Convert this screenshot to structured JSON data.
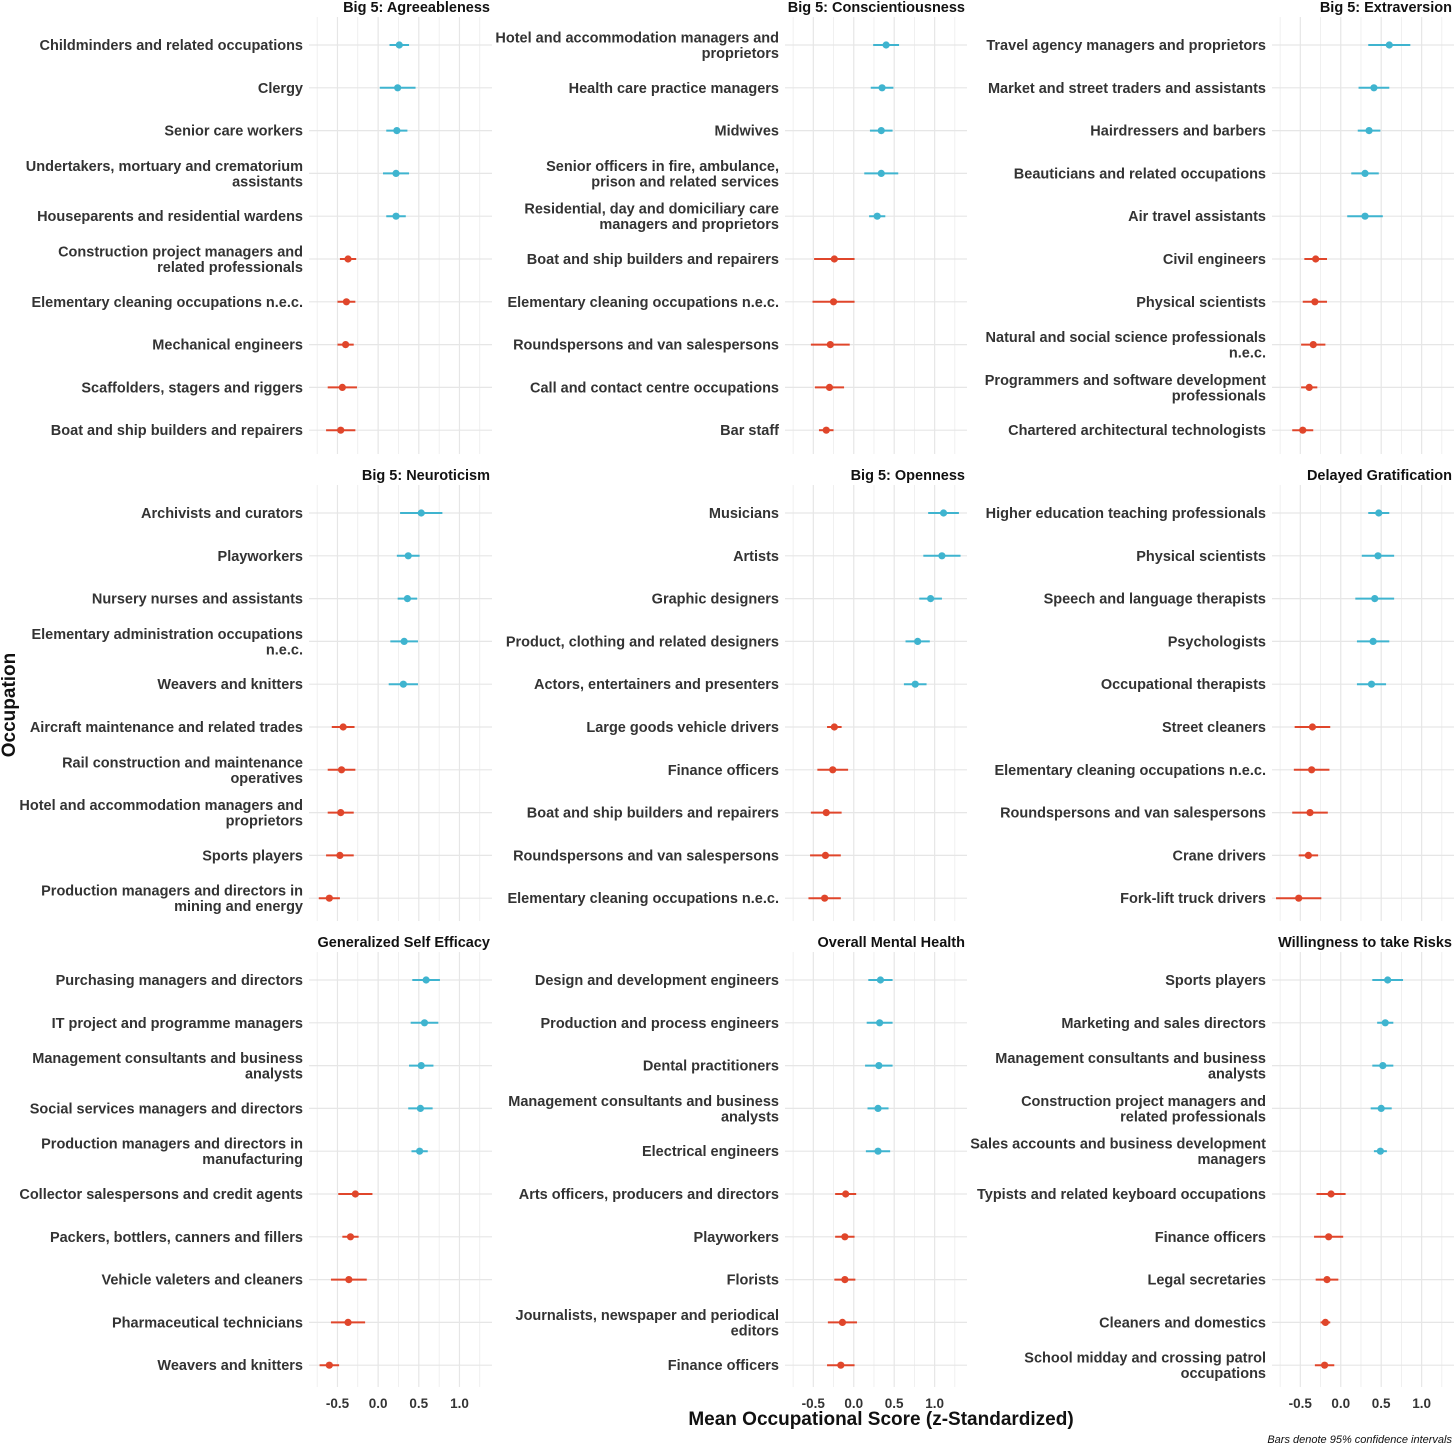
{
  "x_axis_title": "Mean Occupational Score (z-Standardized)",
  "y_axis_title": "Occupation",
  "caption": "Bars denote 95% confidence intervals",
  "colors": {
    "high": "#3fb4cf",
    "low": "#e0462b",
    "grid": "#e6e6e6"
  },
  "chart_data": [
    {
      "type": "scatter",
      "title": "Big 5: Agreeableness",
      "xlim": [
        -0.85,
        1.4
      ],
      "xticks": [
        -0.5,
        0,
        0.5,
        1
      ],
      "xtick_labels": [
        "-0.5",
        "0.0",
        "0.5",
        "1.0"
      ],
      "categories": [
        "Childminders and related occupations",
        "Clergy",
        "Senior care workers",
        "Undertakers, mortuary and crematorium assistants",
        "Houseparents and residential wardens",
        "Construction project managers and related professionals",
        "Elementary cleaning occupations n.e.c.",
        "Mechanical engineers",
        "Scaffolders, stagers and riggers",
        "Boat and ship builders and repairers"
      ],
      "labels": [
        [
          "Childminders and related occupations"
        ],
        [
          "Clergy"
        ],
        [
          "Senior care workers"
        ],
        [
          "Undertakers, mortuary and crematorium",
          "assistants"
        ],
        [
          "Houseparents and residential wardens"
        ],
        [
          "Construction project managers and",
          "related professionals"
        ],
        [
          "Elementary cleaning occupations n.e.c."
        ],
        [
          "Mechanical engineers"
        ],
        [
          "Scaffolders, stagers and riggers"
        ],
        [
          "Boat and ship builders and repairers"
        ]
      ],
      "values": [
        0.26,
        0.24,
        0.23,
        0.22,
        0.22,
        -0.37,
        -0.39,
        -0.4,
        -0.44,
        -0.46
      ],
      "ci_low": [
        0.14,
        0.02,
        0.1,
        0.06,
        0.1,
        -0.47,
        -0.5,
        -0.5,
        -0.62,
        -0.64
      ],
      "ci_high": [
        0.38,
        0.46,
        0.36,
        0.38,
        0.34,
        -0.27,
        -0.28,
        -0.3,
        -0.26,
        -0.28
      ],
      "group": [
        "high",
        "high",
        "high",
        "high",
        "high",
        "low",
        "low",
        "low",
        "low",
        "low"
      ]
    },
    {
      "type": "scatter",
      "title": "Big 5: Conscientiousness",
      "xlim": [
        -0.85,
        1.4
      ],
      "xticks": [
        -0.5,
        0,
        0.5,
        1
      ],
      "xtick_labels": [
        "-0.5",
        "0.0",
        "0.5",
        "1.0"
      ],
      "categories": [
        "Hotel and accommodation managers and proprietors",
        "Health care practice managers",
        "Midwives",
        "Senior officers in fire, ambulance, prison and related services",
        "Residential, day and domiciliary care managers and proprietors",
        "Boat and ship builders and repairers",
        "Elementary cleaning occupations n.e.c.",
        "Roundspersons and van salespersons",
        "Call and contact centre occupations",
        "Bar staff"
      ],
      "labels": [
        [
          "Hotel and accommodation managers and",
          "proprietors"
        ],
        [
          "Health care practice managers"
        ],
        [
          "Midwives"
        ],
        [
          "Senior officers in fire, ambulance,",
          "prison and related services"
        ],
        [
          "Residential, day and domiciliary care",
          "managers and proprietors"
        ],
        [
          "Boat and ship builders and repairers"
        ],
        [
          "Elementary cleaning occupations n.e.c."
        ],
        [
          "Roundspersons and van salespersons"
        ],
        [
          "Call and contact centre occupations"
        ],
        [
          "Bar staff"
        ]
      ],
      "values": [
        0.4,
        0.35,
        0.34,
        0.34,
        0.29,
        -0.24,
        -0.25,
        -0.29,
        -0.3,
        -0.34
      ],
      "ci_low": [
        0.24,
        0.21,
        0.2,
        0.13,
        0.19,
        -0.49,
        -0.51,
        -0.53,
        -0.48,
        -0.43
      ],
      "ci_high": [
        0.56,
        0.49,
        0.48,
        0.55,
        0.39,
        0.01,
        0.01,
        -0.05,
        -0.12,
        -0.25
      ],
      "group": [
        "high",
        "high",
        "high",
        "high",
        "high",
        "low",
        "low",
        "low",
        "low",
        "low"
      ]
    },
    {
      "type": "scatter",
      "title": "Big 5: Extraversion",
      "xlim": [
        -0.85,
        1.4
      ],
      "xticks": [
        -0.5,
        0,
        0.5,
        1
      ],
      "xtick_labels": [
        "-0.5",
        "0.0",
        "0.5",
        "1.0"
      ],
      "categories": [
        "Travel agency managers and proprietors",
        "Market and street traders and assistants",
        "Hairdressers and barbers",
        "Beauticians and related occupations",
        "Air travel assistants",
        "Civil engineers",
        "Physical scientists",
        "Natural and social science professionals n.e.c.",
        "Programmers and software development professionals",
        "Chartered architectural technologists"
      ],
      "labels": [
        [
          "Travel agency managers and proprietors"
        ],
        [
          "Market and street traders and assistants"
        ],
        [
          "Hairdressers and barbers"
        ],
        [
          "Beauticians and related occupations"
        ],
        [
          "Air travel assistants"
        ],
        [
          "Civil engineers"
        ],
        [
          "Physical scientists"
        ],
        [
          "Natural and social science professionals",
          "n.e.c."
        ],
        [
          "Programmers and software development",
          "professionals"
        ],
        [
          "Chartered architectural technologists"
        ]
      ],
      "values": [
        0.6,
        0.41,
        0.35,
        0.3,
        0.3,
        -0.31,
        -0.32,
        -0.34,
        -0.39,
        -0.47
      ],
      "ci_low": [
        0.34,
        0.22,
        0.21,
        0.13,
        0.08,
        -0.45,
        -0.47,
        -0.49,
        -0.49,
        -0.6
      ],
      "ci_high": [
        0.86,
        0.6,
        0.49,
        0.47,
        0.52,
        -0.17,
        -0.17,
        -0.19,
        -0.29,
        -0.34
      ],
      "group": [
        "high",
        "high",
        "high",
        "high",
        "high",
        "low",
        "low",
        "low",
        "low",
        "low"
      ]
    },
    {
      "type": "scatter",
      "title": "Big 5: Neuroticism",
      "xlim": [
        -0.85,
        1.4
      ],
      "xticks": [
        -0.5,
        0,
        0.5,
        1
      ],
      "xtick_labels": [
        "-0.5",
        "0.0",
        "0.5",
        "1.0"
      ],
      "categories": [
        "Archivists and curators",
        "Playworkers",
        "Nursery nurses and assistants",
        "Elementary administration occupations n.e.c.",
        "Weavers and knitters",
        "Aircraft maintenance and related trades",
        "Rail construction and maintenance operatives",
        "Hotel and accommodation managers and proprietors",
        "Sports players",
        "Production managers and directors in mining and energy"
      ],
      "labels": [
        [
          "Archivists and curators"
        ],
        [
          "Playworkers"
        ],
        [
          "Nursery nurses and assistants"
        ],
        [
          "Elementary administration occupations",
          "n.e.c."
        ],
        [
          "Weavers and knitters"
        ],
        [
          "Aircraft maintenance and related trades"
        ],
        [
          "Rail construction and maintenance",
          "operatives"
        ],
        [
          "Hotel and accommodation managers and",
          "proprietors"
        ],
        [
          "Sports players"
        ],
        [
          "Production managers and directors in",
          "mining and energy"
        ]
      ],
      "values": [
        0.53,
        0.37,
        0.36,
        0.32,
        0.31,
        -0.43,
        -0.45,
        -0.46,
        -0.47,
        -0.6
      ],
      "ci_low": [
        0.27,
        0.23,
        0.24,
        0.15,
        0.13,
        -0.57,
        -0.62,
        -0.62,
        -0.64,
        -0.73
      ],
      "ci_high": [
        0.79,
        0.51,
        0.48,
        0.49,
        0.49,
        -0.29,
        -0.28,
        -0.3,
        -0.3,
        -0.47
      ],
      "group": [
        "high",
        "high",
        "high",
        "high",
        "high",
        "low",
        "low",
        "low",
        "low",
        "low"
      ]
    },
    {
      "type": "scatter",
      "title": "Big 5: Openness",
      "xlim": [
        -0.85,
        1.4
      ],
      "xticks": [
        -0.5,
        0,
        0.5,
        1
      ],
      "xtick_labels": [
        "-0.5",
        "0.0",
        "0.5",
        "1.0"
      ],
      "categories": [
        "Musicians",
        "Artists",
        "Graphic designers",
        "Product, clothing and related designers",
        "Actors, entertainers and presenters",
        "Large goods vehicle drivers",
        "Finance officers",
        "Boat and ship builders and repairers",
        "Roundspersons and van salespersons",
        "Elementary cleaning occupations n.e.c."
      ],
      "labels": [
        [
          "Musicians"
        ],
        [
          "Artists"
        ],
        [
          "Graphic designers"
        ],
        [
          "Product, clothing and related designers"
        ],
        [
          "Actors, entertainers and presenters"
        ],
        [
          "Large goods vehicle drivers"
        ],
        [
          "Finance officers"
        ],
        [
          "Boat and ship builders and repairers"
        ],
        [
          "Roundspersons and van salespersons"
        ],
        [
          "Elementary cleaning occupations n.e.c."
        ]
      ],
      "values": [
        1.11,
        1.09,
        0.95,
        0.79,
        0.76,
        -0.24,
        -0.26,
        -0.34,
        -0.35,
        -0.36
      ],
      "ci_low": [
        0.92,
        0.86,
        0.81,
        0.64,
        0.62,
        -0.33,
        -0.45,
        -0.53,
        -0.54,
        -0.56
      ],
      "ci_high": [
        1.3,
        1.32,
        1.09,
        0.94,
        0.9,
        -0.15,
        -0.07,
        -0.15,
        -0.16,
        -0.16
      ],
      "group": [
        "high",
        "high",
        "high",
        "high",
        "high",
        "low",
        "low",
        "low",
        "low",
        "low"
      ]
    },
    {
      "type": "scatter",
      "title": "Delayed Gratification",
      "xlim": [
        -0.85,
        1.4
      ],
      "xticks": [
        -0.5,
        0,
        0.5,
        1
      ],
      "xtick_labels": [
        "-0.5",
        "0.0",
        "0.5",
        "1.0"
      ],
      "categories": [
        "Higher education teaching professionals",
        "Physical scientists",
        "Speech and language therapists",
        "Psychologists",
        "Occupational therapists",
        "Street cleaners",
        "Elementary cleaning occupations n.e.c.",
        "Roundspersons and van salespersons",
        "Crane drivers",
        "Fork-lift truck drivers"
      ],
      "labels": [
        [
          "Higher education teaching professionals"
        ],
        [
          "Physical scientists"
        ],
        [
          "Speech and language therapists"
        ],
        [
          "Psychologists"
        ],
        [
          "Occupational therapists"
        ],
        [
          "Street cleaners"
        ],
        [
          "Elementary cleaning occupations n.e.c."
        ],
        [
          "Roundspersons and van salespersons"
        ],
        [
          "Crane drivers"
        ],
        [
          "Fork-lift truck drivers"
        ]
      ],
      "values": [
        0.47,
        0.46,
        0.42,
        0.4,
        0.38,
        -0.35,
        -0.36,
        -0.38,
        -0.4,
        -0.52
      ],
      "ci_low": [
        0.34,
        0.26,
        0.18,
        0.2,
        0.2,
        -0.57,
        -0.58,
        -0.6,
        -0.52,
        -0.8
      ],
      "ci_high": [
        0.6,
        0.66,
        0.66,
        0.6,
        0.56,
        -0.13,
        -0.14,
        -0.16,
        -0.28,
        -0.24
      ],
      "group": [
        "high",
        "high",
        "high",
        "high",
        "high",
        "low",
        "low",
        "low",
        "low",
        "low"
      ]
    },
    {
      "type": "scatter",
      "title": "Generalized Self Efficacy",
      "xlim": [
        -0.85,
        1.4
      ],
      "xticks": [
        -0.5,
        0,
        0.5,
        1
      ],
      "xtick_labels": [
        "-0.5",
        "0.0",
        "0.5",
        "1.0"
      ],
      "categories": [
        "Purchasing managers and directors",
        "IT project and programme managers",
        "Management consultants and business analysts",
        "Social services managers and directors",
        "Production managers and directors in manufacturing",
        "Collector salespersons and credit agents",
        "Packers, bottlers, canners and fillers",
        "Vehicle valeters and cleaners",
        "Pharmaceutical technicians",
        "Weavers and knitters"
      ],
      "labels": [
        [
          "Purchasing managers and directors"
        ],
        [
          "IT project and programme managers"
        ],
        [
          "Management consultants and business",
          "analysts"
        ],
        [
          "Social services managers and directors"
        ],
        [
          "Production managers and directors in",
          "manufacturing"
        ],
        [
          "Collector salespersons and credit agents"
        ],
        [
          "Packers, bottlers, canners and fillers"
        ],
        [
          "Vehicle valeters and cleaners"
        ],
        [
          "Pharmaceutical technicians"
        ],
        [
          "Weavers and knitters"
        ]
      ],
      "values": [
        0.59,
        0.57,
        0.53,
        0.52,
        0.51,
        -0.28,
        -0.34,
        -0.36,
        -0.37,
        -0.6
      ],
      "ci_low": [
        0.42,
        0.4,
        0.38,
        0.37,
        0.41,
        -0.49,
        -0.44,
        -0.58,
        -0.58,
        -0.72
      ],
      "ci_high": [
        0.76,
        0.74,
        0.68,
        0.67,
        0.61,
        -0.07,
        -0.24,
        -0.14,
        -0.16,
        -0.48
      ],
      "group": [
        "high",
        "high",
        "high",
        "high",
        "high",
        "low",
        "low",
        "low",
        "low",
        "low"
      ]
    },
    {
      "type": "scatter",
      "title": "Overall Mental Health",
      "xlim": [
        -0.85,
        1.4
      ],
      "xticks": [
        -0.5,
        0,
        0.5,
        1
      ],
      "xtick_labels": [
        "-0.5",
        "0.0",
        "0.5",
        "1.0"
      ],
      "categories": [
        "Design and development engineers",
        "Production and process engineers",
        "Dental practitioners",
        "Management consultants and business analysts",
        "Electrical engineers",
        "Arts officers, producers and directors",
        "Playworkers",
        "Florists",
        "Journalists, newspaper and periodical editors",
        "Finance officers"
      ],
      "labels": [
        [
          "Design and development engineers"
        ],
        [
          "Production and process engineers"
        ],
        [
          "Dental practitioners"
        ],
        [
          "Management consultants and business",
          "analysts"
        ],
        [
          "Electrical engineers"
        ],
        [
          "Arts officers, producers and directors"
        ],
        [
          "Playworkers"
        ],
        [
          "Florists"
        ],
        [
          "Journalists, newspaper and periodical",
          "editors"
        ],
        [
          "Finance officers"
        ]
      ],
      "values": [
        0.33,
        0.32,
        0.31,
        0.3,
        0.3,
        -0.1,
        -0.11,
        -0.11,
        -0.14,
        -0.16
      ],
      "ci_low": [
        0.18,
        0.16,
        0.14,
        0.17,
        0.15,
        -0.23,
        -0.23,
        -0.24,
        -0.32,
        -0.33
      ],
      "ci_high": [
        0.48,
        0.48,
        0.48,
        0.43,
        0.45,
        0.03,
        0.01,
        0.02,
        0.04,
        0.01
      ],
      "group": [
        "high",
        "high",
        "high",
        "high",
        "high",
        "low",
        "low",
        "low",
        "low",
        "low"
      ]
    },
    {
      "type": "scatter",
      "title": "Willingness to take Risks",
      "xlim": [
        -0.85,
        1.4
      ],
      "xticks": [
        -0.5,
        0,
        0.5,
        1
      ],
      "xtick_labels": [
        "-0.5",
        "0.0",
        "0.5",
        "1.0"
      ],
      "categories": [
        "Sports players",
        "Marketing and sales directors",
        "Management consultants and business analysts",
        "Construction project managers and related professionals",
        "Sales accounts and business development managers",
        "Typists and related keyboard occupations",
        "Finance officers",
        "Legal secretaries",
        "Cleaners and domestics",
        "School midday and crossing patrol occupations"
      ],
      "labels": [
        [
          "Sports players"
        ],
        [
          "Marketing and sales directors"
        ],
        [
          "Management consultants and business",
          "analysts"
        ],
        [
          "Construction project managers and",
          "related professionals"
        ],
        [
          "Sales accounts and business development",
          "managers"
        ],
        [
          "Typists and related keyboard occupations"
        ],
        [
          "Finance officers"
        ],
        [
          "Legal secretaries"
        ],
        [
          "Cleaners and domestics"
        ],
        [
          "School midday and crossing patrol",
          "occupations"
        ]
      ],
      "values": [
        0.58,
        0.55,
        0.52,
        0.5,
        0.49,
        -0.12,
        -0.15,
        -0.17,
        -0.19,
        -0.2
      ],
      "ci_low": [
        0.39,
        0.45,
        0.39,
        0.37,
        0.41,
        -0.3,
        -0.33,
        -0.31,
        -0.25,
        -0.32
      ],
      "ci_high": [
        0.77,
        0.65,
        0.65,
        0.63,
        0.57,
        0.06,
        0.03,
        -0.03,
        -0.13,
        -0.08
      ],
      "group": [
        "high",
        "high",
        "high",
        "high",
        "high",
        "low",
        "low",
        "low",
        "low",
        "low"
      ]
    }
  ]
}
